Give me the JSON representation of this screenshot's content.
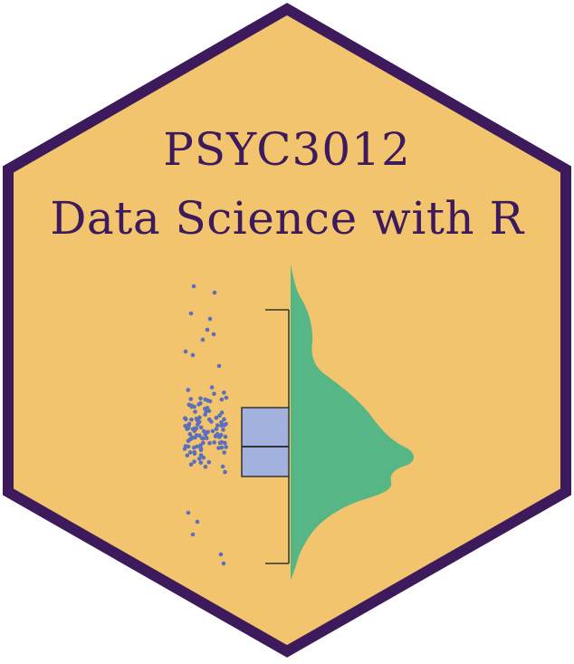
{
  "sticker": {
    "title_line1": "PSYC3012",
    "title_line2": "Data Science with R"
  },
  "colors": {
    "hex_fill": "#f2c46d",
    "hex_border": "#3d1a5c",
    "title_text": "#3d1a5c",
    "points": "#5b6fbf",
    "box_fill": "#a3b1df",
    "density_fill": "#57b685",
    "lines": "#333333"
  },
  "chart_data": {
    "type": "raincloud",
    "components": [
      "jittered-points",
      "boxplot",
      "half-violin-density"
    ]
  }
}
